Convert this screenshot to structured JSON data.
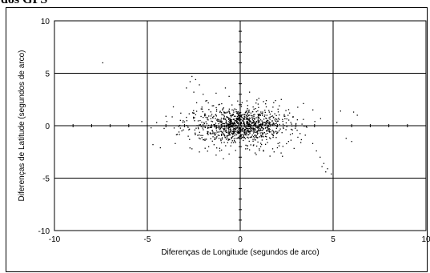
{
  "header_fragment": "dos GPS",
  "chart_data": {
    "type": "scatter",
    "title": "",
    "xlabel": "Diferenças de Longitude (segundos de arco)",
    "ylabel": "Diferenças de Latitude (segundos de arco)",
    "xlim": [
      -10,
      10
    ],
    "ylim": [
      -10,
      10
    ],
    "xticks": [
      "-10",
      "-5",
      "0",
      "5",
      "10"
    ],
    "yticks": [
      "10",
      "5",
      "0",
      "-5",
      "-10"
    ],
    "grid": true,
    "point_color": "#000000",
    "series": [
      {
        "points": [
          [
            -7.4,
            6.0
          ],
          [
            -2.6,
            4.7
          ],
          [
            -2.4,
            4.4
          ],
          [
            -2.7,
            4.2
          ],
          [
            -2.2,
            3.9
          ],
          [
            -2.9,
            3.6
          ],
          [
            -2.5,
            3.2
          ],
          [
            -2.0,
            3.0
          ],
          [
            -1.3,
            3.1
          ],
          [
            -0.6,
            2.8
          ],
          [
            0.5,
            3.2
          ],
          [
            1.0,
            2.6
          ],
          [
            1.9,
            2.4
          ],
          [
            2.1,
            1.9
          ],
          [
            -3.6,
            1.8
          ],
          [
            -3.2,
            1.2
          ],
          [
            -4.0,
            0.9
          ],
          [
            -5.3,
            0.4
          ],
          [
            -4.5,
            0.3
          ],
          [
            -4.7,
            -1.8
          ],
          [
            -4.3,
            -2.1
          ],
          [
            -3.5,
            -1.7
          ],
          [
            -2.6,
            -2.2
          ],
          [
            -2.2,
            -2.5
          ],
          [
            -1.7,
            -2.0
          ],
          [
            -1.9,
            -1.4
          ],
          [
            -1.1,
            -2.4
          ],
          [
            -0.6,
            -2.7
          ],
          [
            0.5,
            -2.3
          ],
          [
            1.1,
            -2.0
          ],
          [
            1.6,
            -2.9
          ],
          [
            2.0,
            -2.1
          ],
          [
            2.6,
            -1.5
          ],
          [
            3.1,
            -1.1
          ],
          [
            3.5,
            -0.9
          ],
          [
            3.9,
            -1.7
          ],
          [
            4.1,
            -2.4
          ],
          [
            4.3,
            -3.0
          ],
          [
            4.5,
            -3.6
          ],
          [
            4.7,
            -4.1
          ],
          [
            4.9,
            -4.6
          ],
          [
            4.6,
            -4.4
          ],
          [
            4.4,
            -3.9
          ],
          [
            5.4,
            1.4
          ],
          [
            6.1,
            1.3
          ],
          [
            6.3,
            1.0
          ],
          [
            5.7,
            -1.2
          ],
          [
            6.0,
            -1.5
          ],
          [
            5.2,
            0.3
          ],
          [
            3.0,
            0.2
          ],
          [
            2.4,
            0.9
          ],
          [
            2.8,
            -0.4
          ],
          [
            -0.8,
            3.6
          ],
          [
            0.1,
            2.2
          ],
          [
            -1.5,
            1.9
          ],
          [
            -2.9,
            0.8
          ],
          [
            -3.3,
            -0.6
          ],
          [
            -2.8,
            -1.0
          ],
          [
            0.8,
            -2.6
          ],
          [
            1.4,
            1.8
          ],
          [
            -1.8,
            2.4
          ],
          [
            -1.0,
            2.1
          ],
          [
            0.0,
            4.0
          ],
          [
            -0.3,
            1.6
          ],
          [
            3.4,
            0.6
          ],
          [
            -4.8,
            -0.2
          ],
          [
            2.2,
            -2.6
          ],
          [
            -1.3,
            -2.8
          ],
          [
            1.8,
            2.2
          ],
          [
            -2.1,
            1.6
          ]
        ]
      }
    ]
  }
}
